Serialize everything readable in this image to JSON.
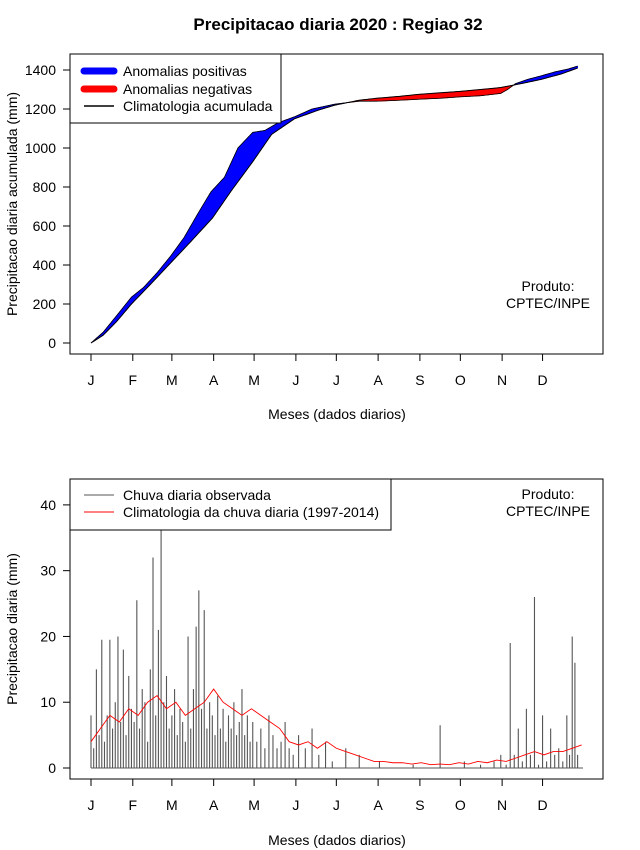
{
  "title": "Precipitacao diaria 2020 : Regiao 32",
  "chart_data": [
    {
      "type": "area",
      "ylabel": "Precipitacao diaria acumulada (mm)",
      "xlabel": "Meses (dados diarios)",
      "ylim": [
        0,
        1400
      ],
      "yticks": [
        0,
        200,
        400,
        600,
        800,
        1000,
        1200,
        1400
      ],
      "month_ticks": [
        "J",
        "F",
        "M",
        "A",
        "M",
        "J",
        "J",
        "A",
        "S",
        "O",
        "N",
        "D"
      ],
      "legend": [
        {
          "label": "Anomalias positivas",
          "color": "#0000ff"
        },
        {
          "label": "Anomalias negativas",
          "color": "#ff0000"
        },
        {
          "label": "Climatologia acumulada",
          "color": "#000000"
        }
      ],
      "annotation": [
        "Produto:",
        "CPTEC/INPE"
      ],
      "observed_cumulative": {
        "day": [
          1,
          10,
          20,
          31,
          40,
          50,
          60,
          70,
          80,
          90,
          100,
          110,
          121,
          130,
          140,
          152,
          165,
          182,
          200,
          213,
          230,
          244,
          260,
          274,
          290,
          305,
          310,
          316,
          325,
          335,
          345,
          355,
          362
        ],
        "value": [
          0,
          55,
          140,
          235,
          285,
          360,
          445,
          540,
          660,
          775,
          850,
          1000,
          1080,
          1090,
          1130,
          1160,
          1200,
          1225,
          1240,
          1240,
          1245,
          1250,
          1255,
          1262,
          1268,
          1280,
          1300,
          1330,
          1352,
          1370,
          1390,
          1405,
          1420
        ]
      },
      "climatology_cumulative": {
        "day": [
          1,
          10,
          20,
          31,
          45,
          60,
          75,
          91,
          105,
          121,
          135,
          152,
          170,
          182,
          200,
          213,
          230,
          244,
          260,
          274,
          290,
          305,
          320,
          335,
          350,
          362
        ],
        "value": [
          0,
          40,
          110,
          200,
          300,
          410,
          520,
          640,
          780,
          930,
          1070,
          1150,
          1195,
          1220,
          1245,
          1255,
          1265,
          1275,
          1283,
          1290,
          1300,
          1310,
          1330,
          1352,
          1380,
          1410
        ]
      }
    },
    {
      "type": "bar",
      "ylabel": "Precipitacao diaria (mm)",
      "xlabel": "Meses (dados diarios)",
      "ylim": [
        0,
        45
      ],
      "yticks": [
        0,
        10,
        20,
        30,
        40
      ],
      "month_ticks": [
        "J",
        "F",
        "M",
        "A",
        "M",
        "J",
        "J",
        "A",
        "S",
        "O",
        "N",
        "D"
      ],
      "legend": [
        {
          "label": "Chuva diaria observada",
          "color": "#555555"
        },
        {
          "label": "Climatologia da chuva diaria (1997-2014)",
          "color": "#ff0000"
        }
      ],
      "annotation": [
        "Produto:",
        "CPTEC/INPE"
      ],
      "observed_daily": {
        "day": [
          1,
          3,
          5,
          7,
          9,
          11,
          13,
          15,
          17,
          19,
          21,
          23,
          25,
          27,
          29,
          31,
          33,
          35,
          37,
          39,
          41,
          43,
          45,
          47,
          49,
          51,
          53,
          55,
          57,
          59,
          61,
          63,
          65,
          67,
          69,
          71,
          73,
          75,
          77,
          79,
          81,
          83,
          85,
          87,
          89,
          91,
          93,
          95,
          97,
          99,
          101,
          103,
          105,
          107,
          109,
          111,
          113,
          115,
          117,
          119,
          121,
          124,
          127,
          130,
          133,
          136,
          139,
          142,
          145,
          148,
          151,
          155,
          160,
          165,
          170,
          175,
          180,
          190,
          200,
          215,
          240,
          260,
          278,
          290,
          300,
          305,
          309,
          312,
          315,
          318,
          321,
          324,
          327,
          330,
          333,
          336,
          339,
          342,
          345,
          348,
          351,
          354,
          356,
          358,
          360,
          362
        ],
        "value": [
          8,
          3,
          15,
          5,
          19.5,
          4,
          8,
          19.5,
          6,
          10,
          20,
          7,
          18,
          5,
          14,
          9,
          7,
          25.5,
          6,
          12,
          10,
          4,
          15,
          32,
          8,
          21,
          42,
          10,
          14,
          6,
          8,
          12,
          5,
          9,
          7,
          4,
          20,
          6,
          12,
          21.5,
          27,
          9,
          24,
          6,
          10,
          8,
          5,
          11,
          6,
          9,
          4,
          8,
          6,
          10,
          5,
          7,
          12,
          5,
          8,
          4,
          7,
          4,
          6,
          3,
          8,
          5,
          3,
          4,
          7,
          3,
          2,
          5,
          3,
          6,
          2,
          4,
          1,
          3,
          2,
          1,
          0.5,
          6.5,
          1,
          0.5,
          1,
          2,
          0.5,
          19,
          2,
          6,
          1,
          9,
          2,
          26,
          0.5,
          8,
          1,
          6,
          2,
          3,
          1,
          8,
          2,
          20,
          16,
          2
        ]
      },
      "climatology_daily": {
        "day": [
          1,
          8,
          15,
          22,
          29,
          36,
          43,
          50,
          57,
          64,
          71,
          78,
          85,
          92,
          99,
          106,
          113,
          120,
          127,
          134,
          141,
          148,
          155,
          162,
          169,
          176,
          183,
          190,
          197,
          204,
          211,
          218,
          225,
          232,
          239,
          246,
          253,
          260,
          267,
          274,
          281,
          288,
          295,
          302,
          309,
          316,
          323,
          330,
          337,
          344,
          351,
          358,
          365
        ],
        "value": [
          4,
          6,
          8,
          7,
          9,
          8,
          10,
          11,
          9,
          10,
          8,
          9,
          10,
          12,
          10,
          9,
          8,
          9,
          8,
          7,
          6,
          4,
          3.5,
          4,
          3,
          4,
          3,
          2.5,
          2,
          1.5,
          1,
          1,
          0.8,
          0.8,
          0.6,
          0.8,
          0.5,
          0.6,
          0.5,
          0.8,
          0.6,
          1,
          0.8,
          1.2,
          1,
          1.5,
          2,
          2.5,
          2,
          2.5,
          2.5,
          3,
          3.5
        ]
      }
    }
  ]
}
